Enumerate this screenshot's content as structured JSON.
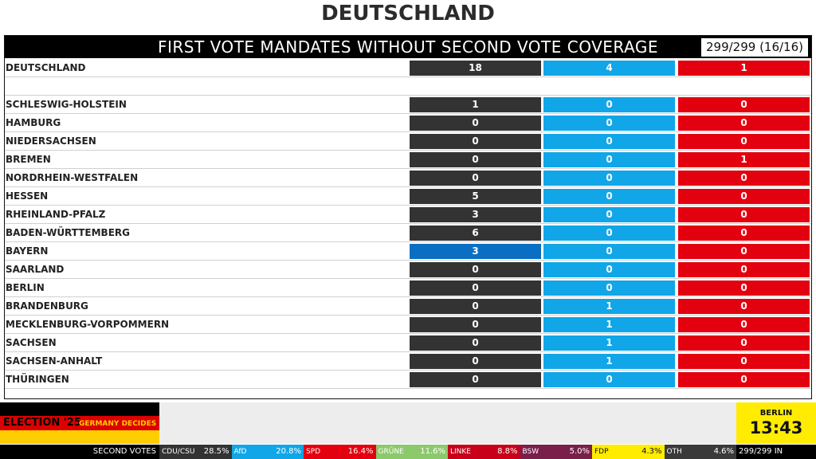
{
  "title": "DEUTSCHLAND",
  "header": {
    "title": "FIRST VOTE MANDATES WITHOUT SECOND VOTE COVERAGE",
    "count": "299/299 (16/16)"
  },
  "colors": {
    "col1": "#333333",
    "col1_highlight": "#0a6fc2",
    "col2": "#10a6e8",
    "col3": "#e3000f"
  },
  "total": {
    "label": "DEUTSCHLAND",
    "values": [
      "18",
      "4",
      "1"
    ]
  },
  "states": [
    {
      "label": "SCHLESWIG-HOLSTEIN",
      "values": [
        "1",
        "0",
        "0"
      ]
    },
    {
      "label": "HAMBURG",
      "values": [
        "0",
        "0",
        "0"
      ]
    },
    {
      "label": "NIEDERSACHSEN",
      "values": [
        "0",
        "0",
        "0"
      ]
    },
    {
      "label": "BREMEN",
      "values": [
        "0",
        "0",
        "1"
      ]
    },
    {
      "label": "NORDRHEIN-WESTFALEN",
      "values": [
        "0",
        "0",
        "0"
      ]
    },
    {
      "label": "HESSEN",
      "values": [
        "5",
        "0",
        "0"
      ]
    },
    {
      "label": "RHEINLAND-PFALZ",
      "values": [
        "3",
        "0",
        "0"
      ]
    },
    {
      "label": "BADEN-WÜRTTEMBERG",
      "values": [
        "6",
        "0",
        "0"
      ]
    },
    {
      "label": "BAYERN",
      "values": [
        "3",
        "0",
        "0"
      ],
      "highlight": true
    },
    {
      "label": "SAARLAND",
      "values": [
        "0",
        "0",
        "0"
      ]
    },
    {
      "label": "BERLIN",
      "values": [
        "0",
        "0",
        "0"
      ]
    },
    {
      "label": "BRANDENBURG",
      "values": [
        "0",
        "1",
        "0"
      ]
    },
    {
      "label": "MECKLENBURG-VORPOMMERN",
      "values": [
        "0",
        "1",
        "0"
      ]
    },
    {
      "label": "SACHSEN",
      "values": [
        "0",
        "1",
        "0"
      ]
    },
    {
      "label": "SACHSEN-ANHALT",
      "values": [
        "0",
        "1",
        "0"
      ]
    },
    {
      "label": "THÜRINGEN",
      "values": [
        "0",
        "0",
        "0"
      ]
    }
  ],
  "branding": {
    "election": "ELECTION '25",
    "subtitle": "GERMANY DECIDES"
  },
  "clock": {
    "city": "BERLIN",
    "time": "13:43"
  },
  "ticker": {
    "label": "SECOND VOTES",
    "parties": [
      {
        "name": "CDU/CSU",
        "value": "28.5%",
        "color": "#333333"
      },
      {
        "name": "AfD",
        "value": "20.8%",
        "color": "#10a6e8"
      },
      {
        "name": "SPD",
        "value": "16.4%",
        "color": "#e3000f"
      },
      {
        "name": "GRÜNE",
        "value": "11.6%",
        "color": "#8cc96b"
      },
      {
        "name": "LINKE",
        "value": "8.8%",
        "color": "#c8001a"
      },
      {
        "name": "BSW",
        "value": "5.0%",
        "color": "#7a1e4a"
      },
      {
        "name": "FDP",
        "value": "4.3%",
        "color": "#ffec00"
      },
      {
        "name": "OTH",
        "value": "4.6%",
        "color": "#3a3a3a"
      }
    ],
    "in": "299/299 IN"
  }
}
